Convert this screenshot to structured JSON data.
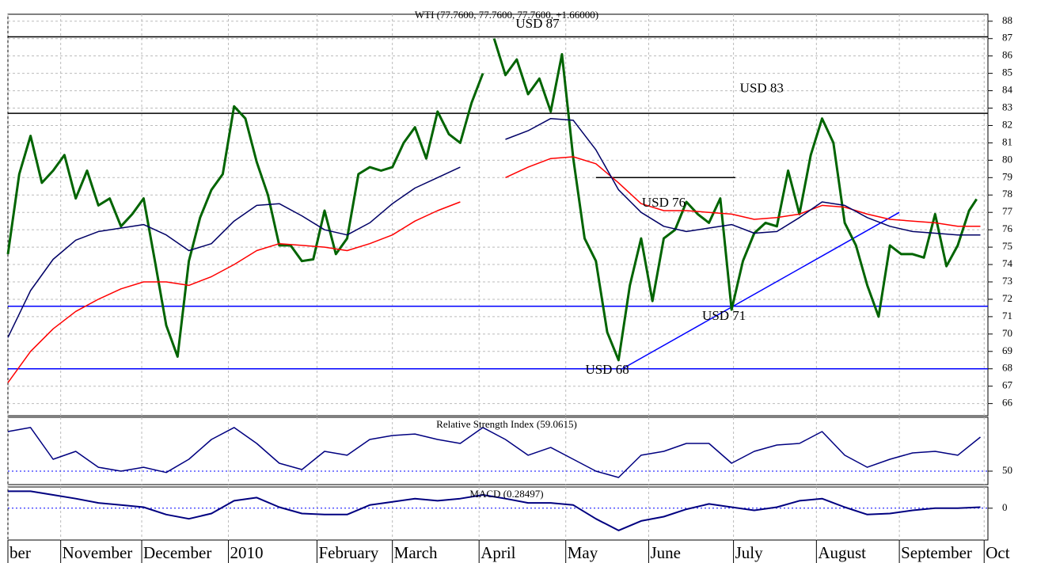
{
  "chart_data": [
    {
      "type": "line",
      "title": "WTI (77.7600, 77.7600, 77.7600, +1.66000)",
      "xlim": [
        0,
        260
      ],
      "ylim": [
        65.3,
        88.4
      ],
      "yticks": [
        66,
        67,
        68,
        69,
        70,
        71,
        72,
        73,
        74,
        75,
        76,
        77,
        78,
        79,
        80,
        81,
        82,
        83,
        84,
        85,
        86,
        87,
        88
      ],
      "grid": true,
      "series": [
        {
          "color": "#006400",
          "width": 3,
          "x": [
            0,
            3,
            6,
            9,
            12,
            15,
            18,
            21,
            24,
            27,
            30,
            33,
            36,
            39,
            42,
            45,
            48,
            51,
            54,
            57,
            60,
            63,
            66,
            69,
            72,
            75,
            78,
            81,
            84,
            87,
            90,
            93,
            96,
            99,
            102,
            105,
            108,
            111,
            114,
            117,
            120,
            123,
            126,
            127,
            129,
            132,
            135,
            138,
            141,
            144,
            147,
            150,
            153,
            156,
            159,
            162,
            165,
            168,
            171,
            174,
            177,
            180,
            183,
            186,
            189,
            192,
            195,
            198,
            201,
            204,
            207,
            210,
            213,
            216,
            219,
            222,
            225,
            228,
            231,
            234,
            237,
            240,
            243,
            246,
            249,
            252,
            255,
            257
          ],
          "values": [
            74.6,
            79.2,
            81.4,
            78.7,
            79.4,
            80.3,
            77.8,
            79.4,
            77.4,
            77.8,
            76.2,
            76.9,
            77.8,
            74.2,
            70.5,
            68.7,
            74.2,
            76.7,
            78.3,
            79.2,
            83.1,
            82.4,
            79.9,
            78.0,
            75.1,
            75.1,
            74.2,
            74.3,
            77.1,
            74.6,
            75.5,
            79.2,
            79.6,
            79.4,
            79.6,
            81.0,
            81.9,
            80.1,
            82.8,
            81.5,
            81.0,
            83.3,
            85.0,
            null,
            87.0,
            84.9,
            85.8,
            83.8,
            84.7,
            82.8,
            86.1,
            80.1,
            75.5,
            74.2,
            70.1,
            68.5,
            72.8,
            75.5,
            71.9,
            75.5,
            76.0,
            77.6,
            76.9,
            76.4,
            77.8,
            71.4,
            74.2,
            75.8,
            76.4,
            76.2,
            79.4,
            76.9,
            80.3,
            82.4,
            81.0,
            76.4,
            75.1,
            72.8,
            71.0,
            75.1,
            74.6,
            74.6,
            74.4,
            76.9,
            73.9,
            75.1,
            77.1,
            77.76
          ]
        },
        {
          "color": "#ff0000",
          "width": 1.5,
          "x": [
            0,
            6,
            12,
            18,
            24,
            30,
            36,
            42,
            48,
            54,
            60,
            66,
            72,
            78,
            84,
            90,
            96,
            102,
            108,
            114,
            120,
            126,
            132,
            138,
            144,
            150,
            156,
            162,
            168,
            174,
            180,
            186,
            192,
            198,
            204,
            210,
            216,
            222,
            228,
            234,
            240,
            246,
            252,
            258
          ],
          "values": [
            67.2,
            69.0,
            70.3,
            71.3,
            72.0,
            72.6,
            73.0,
            73.0,
            72.8,
            73.3,
            74.0,
            74.8,
            75.2,
            75.1,
            75.0,
            74.8,
            75.2,
            75.7,
            76.5,
            77.1,
            77.6,
            null,
            79.0,
            79.6,
            80.1,
            80.2,
            79.8,
            78.7,
            77.5,
            77.1,
            77.1,
            77.0,
            76.9,
            76.6,
            76.7,
            76.9,
            77.4,
            77.3,
            76.9,
            76.6,
            76.5,
            76.4,
            76.2,
            76.2
          ]
        },
        {
          "color": "#000066",
          "width": 1.5,
          "x": [
            0,
            6,
            12,
            18,
            24,
            30,
            36,
            42,
            48,
            54,
            60,
            66,
            72,
            78,
            84,
            90,
            96,
            102,
            108,
            114,
            120,
            126,
            132,
            138,
            144,
            150,
            156,
            162,
            168,
            174,
            180,
            186,
            192,
            198,
            204,
            210,
            216,
            222,
            228,
            234,
            240,
            246,
            252,
            258
          ],
          "values": [
            69.8,
            72.5,
            74.3,
            75.4,
            75.9,
            76.1,
            76.3,
            75.7,
            74.8,
            75.2,
            76.5,
            77.4,
            77.5,
            76.8,
            76.0,
            75.7,
            76.4,
            77.5,
            78.4,
            79.0,
            79.6,
            null,
            81.2,
            81.7,
            82.4,
            82.3,
            80.6,
            78.3,
            77.0,
            76.2,
            75.9,
            76.1,
            76.3,
            75.8,
            75.9,
            76.7,
            77.6,
            77.4,
            76.7,
            76.2,
            75.9,
            75.8,
            75.7,
            75.7
          ]
        }
      ],
      "hlines": [
        {
          "value": 87.1,
          "color": "#000000"
        },
        {
          "value": 82.7,
          "color": "#000000"
        },
        {
          "value": 71.6,
          "color": "#0000ff"
        },
        {
          "value": 68,
          "color": "#0000ff"
        }
      ],
      "segments": [
        {
          "x": [
            156,
            193
          ],
          "y": [
            79,
            79
          ],
          "color": "#000000"
        },
        {
          "x": [
            163,
            236.5
          ],
          "y": [
            68,
            77
          ],
          "color": "#0000ff"
        }
      ],
      "annotations": [
        {
          "text": "USD 87",
          "x": 140.5,
          "y": 87.8
        },
        {
          "text": "USD 83",
          "x": 200,
          "y": 84.1
        },
        {
          "text": "USD 76",
          "x": 174,
          "y": 77.5
        },
        {
          "text": "USD 71",
          "x": 190,
          "y": 71
        },
        {
          "text": "USD 68",
          "x": 159,
          "y": 67.9
        }
      ]
    },
    {
      "type": "line",
      "title": "Relative Strength Index (59.0615)",
      "xlim": [
        0,
        260
      ],
      "ylim": [
        40,
        90
      ],
      "yticks": [
        50
      ],
      "refline": 50,
      "series": [
        {
          "color": "#000080",
          "width": 1.5,
          "x": [
            0,
            6,
            12,
            18,
            24,
            30,
            36,
            42,
            48,
            54,
            60,
            66,
            72,
            78,
            84,
            90,
            96,
            102,
            108,
            114,
            120,
            126,
            132,
            138,
            144,
            150,
            156,
            162,
            168,
            174,
            180,
            186,
            192,
            198,
            204,
            210,
            216,
            222,
            228,
            234,
            240,
            246,
            252,
            258
          ],
          "values": [
            79.4,
            82.4,
            58.8,
            64.7,
            52.9,
            50,
            52.9,
            49,
            58.8,
            73.5,
            82.4,
            70.6,
            55.9,
            51.2,
            64.7,
            61.8,
            73.5,
            76.5,
            77.6,
            73.5,
            70.6,
            82.4,
            73.5,
            61.8,
            67.6,
            58.8,
            50,
            45.3,
            61.8,
            64.7,
            70.6,
            70.6,
            55.9,
            64.7,
            69.4,
            70.6,
            79.4,
            61.8,
            52.9,
            58.8,
            63.5,
            64.7,
            61.8,
            75.3
          ]
        }
      ]
    },
    {
      "type": "line",
      "title": "MACD (0.28497)",
      "xlim": [
        0,
        260
      ],
      "ylim": [
        -3,
        2
      ],
      "yticks": [
        0
      ],
      "refline": 0,
      "xticks": [
        {
          "value": 0,
          "label": "ber"
        },
        {
          "value": 14,
          "label": "November"
        },
        {
          "value": 35.5,
          "label": "December"
        },
        {
          "value": 58.5,
          "label": "2010"
        },
        {
          "value": 82,
          "label": "February"
        },
        {
          "value": 102,
          "label": "March"
        },
        {
          "value": 125,
          "label": "April"
        },
        {
          "value": 148,
          "label": "May"
        },
        {
          "value": 170,
          "label": "June"
        },
        {
          "value": 192.5,
          "label": "July"
        },
        {
          "value": 214.5,
          "label": "August"
        },
        {
          "value": 236.5,
          "label": "September"
        },
        {
          "value": 259,
          "label": "Oct"
        }
      ],
      "series": [
        {
          "color": "#000080",
          "width": 2,
          "x": [
            0,
            6,
            12,
            18,
            24,
            30,
            36,
            42,
            48,
            54,
            60,
            66,
            72,
            78,
            84,
            90,
            96,
            102,
            108,
            114,
            120,
            126,
            132,
            138,
            144,
            150,
            156,
            162,
            168,
            174,
            180,
            186,
            192,
            198,
            204,
            210,
            216,
            222,
            228,
            234,
            240,
            246,
            252,
            258
          ],
          "values": [
            1.6,
            1.6,
            1.25,
            0.9,
            0.5,
            0.3,
            0.1,
            -0.6,
            -1.0,
            -0.5,
            0.7,
            1.0,
            0.1,
            -0.5,
            -0.6,
            -0.6,
            0.3,
            0.6,
            0.9,
            0.7,
            0.9,
            1.25,
            0.9,
            0.5,
            0.5,
            0.3,
            -1.0,
            -2.1,
            -1.2,
            -0.8,
            -0.1,
            0.4,
            0.1,
            -0.2,
            0.1,
            0.7,
            0.9,
            0.1,
            -0.6,
            -0.5,
            -0.2,
            0.0,
            0.0,
            0.1
          ]
        }
      ]
    }
  ]
}
